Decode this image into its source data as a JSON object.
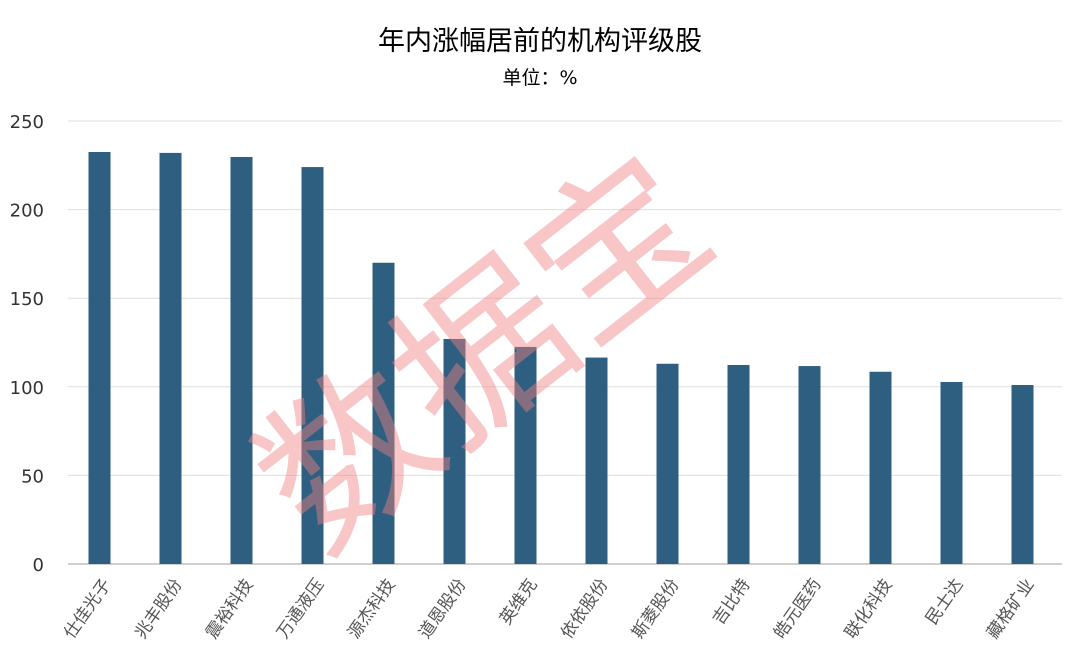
{
  "chart_data": {
    "type": "bar",
    "title": "年内涨幅居前的机构评级股",
    "subtitle": "单位：%",
    "xlabel": "",
    "ylabel": "",
    "ylim": [
      0,
      250
    ],
    "yticks": [
      0,
      50,
      100,
      150,
      200,
      250
    ],
    "grid": true,
    "categories": [
      "仕佳光子",
      "兆丰股份",
      "震裕科技",
      "万通液压",
      "源杰科技",
      "道恩股份",
      "英维克",
      "依依股份",
      "斯菱股份",
      "吉比特",
      "皓元医药",
      "联化科技",
      "民士达",
      "藏格矿业"
    ],
    "values": [
      232.5,
      232,
      229.7,
      224,
      170,
      127,
      122.5,
      116.5,
      113,
      112.3,
      111.7,
      108.5,
      102.7,
      101
    ],
    "bar_color": "#2e5f80",
    "watermark": "数据宝",
    "watermark_color": "#f08080"
  }
}
